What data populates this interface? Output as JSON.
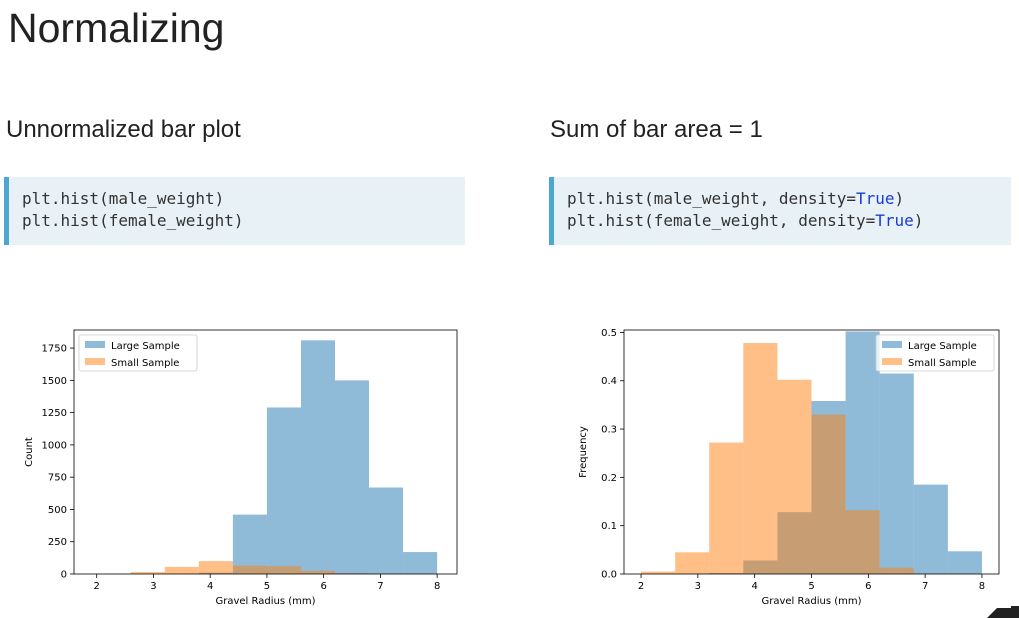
{
  "page": {
    "title": "Normalizing",
    "left_heading": "Unnormalized bar plot",
    "right_heading": "Sum of bar area = 1",
    "left_code": [
      {
        "prefix": "plt.hist(male_weight)",
        "kw": "",
        "suffix": ""
      },
      {
        "prefix": "plt.hist(female_weight)",
        "kw": "",
        "suffix": ""
      }
    ],
    "right_code": [
      {
        "prefix": "plt.hist(male_weight, density=",
        "kw": "True",
        "suffix": ")"
      },
      {
        "prefix": "plt.hist(female_weight, density=",
        "kw": "True",
        "suffix": ")"
      }
    ]
  },
  "colors": {
    "large_sample": "#1f77b4",
    "small_sample": "#ff7f0e",
    "bar_alpha": 0.5,
    "code_keyword": "#1a3bd9",
    "code_border": "#4aa7d0",
    "code_bg": "#e8f1f5"
  },
  "chart_data": [
    {
      "type": "histogram",
      "xlabel": "Gravel Radius (mm)",
      "ylabel": "Count",
      "xlim": [
        1.6,
        8.35
      ],
      "ylim": [
        0,
        1890
      ],
      "xticks": [
        2,
        3,
        4,
        5,
        6,
        7,
        8
      ],
      "yticks": [
        0,
        250,
        500,
        750,
        1000,
        1250,
        1500,
        1750
      ],
      "legend_position": "top-left",
      "grid": false,
      "series": [
        {
          "name": "Large Sample",
          "color_key": "large_sample",
          "bins": [
            [
              2.0,
              2.6
            ],
            [
              2.6,
              3.2
            ],
            [
              3.2,
              3.8
            ],
            [
              3.8,
              4.4
            ],
            [
              4.4,
              5.0
            ],
            [
              5.0,
              5.6
            ],
            [
              5.6,
              6.2
            ],
            [
              6.2,
              6.8
            ],
            [
              6.8,
              7.4
            ],
            [
              7.4,
              8.0
            ]
          ],
          "values": [
            0,
            0,
            0,
            10,
            460,
            1290,
            1810,
            1500,
            670,
            170
          ]
        },
        {
          "name": "Small Sample",
          "color_key": "small_sample",
          "bins": [
            [
              2.0,
              2.6
            ],
            [
              2.6,
              3.2
            ],
            [
              3.2,
              3.8
            ],
            [
              3.8,
              4.4
            ],
            [
              4.4,
              5.0
            ],
            [
              5.0,
              5.6
            ],
            [
              5.6,
              6.2
            ],
            [
              6.2,
              6.8
            ]
          ],
          "values": [
            3,
            15,
            55,
            100,
            65,
            60,
            25,
            5
          ]
        }
      ]
    },
    {
      "type": "histogram",
      "xlabel": "Gravel Radius (mm)",
      "ylabel": "Frequency",
      "xlim": [
        1.7,
        8.3
      ],
      "ylim": [
        0,
        0.505
      ],
      "xticks": [
        2,
        3,
        4,
        5,
        6,
        7,
        8
      ],
      "yticks": [
        0.0,
        0.1,
        0.2,
        0.3,
        0.4,
        0.5
      ],
      "ytick_labels": [
        "0.0",
        "0.1",
        "0.2",
        "0.3",
        "0.4",
        "0.5"
      ],
      "legend_position": "top-right",
      "grid": false,
      "series": [
        {
          "name": "Large Sample",
          "color_key": "large_sample",
          "bins": [
            [
              2.0,
              2.6
            ],
            [
              2.6,
              3.2
            ],
            [
              3.2,
              3.8
            ],
            [
              3.8,
              4.4
            ],
            [
              4.4,
              5.0
            ],
            [
              5.0,
              5.6
            ],
            [
              5.6,
              6.2
            ],
            [
              6.2,
              6.8
            ],
            [
              6.8,
              7.4
            ],
            [
              7.4,
              8.0
            ]
          ],
          "values": [
            0,
            0,
            0.002,
            0.028,
            0.128,
            0.358,
            0.502,
            0.415,
            0.185,
            0.047
          ]
        },
        {
          "name": "Small Sample",
          "color_key": "small_sample",
          "bins": [
            [
              2.0,
              2.6
            ],
            [
              2.6,
              3.2
            ],
            [
              3.2,
              3.8
            ],
            [
              3.8,
              4.4
            ],
            [
              4.4,
              5.0
            ],
            [
              5.0,
              5.6
            ],
            [
              5.6,
              6.2
            ],
            [
              6.2,
              6.8
            ]
          ],
          "values": [
            0.005,
            0.045,
            0.272,
            0.478,
            0.402,
            0.33,
            0.132,
            0.013
          ]
        }
      ]
    }
  ]
}
